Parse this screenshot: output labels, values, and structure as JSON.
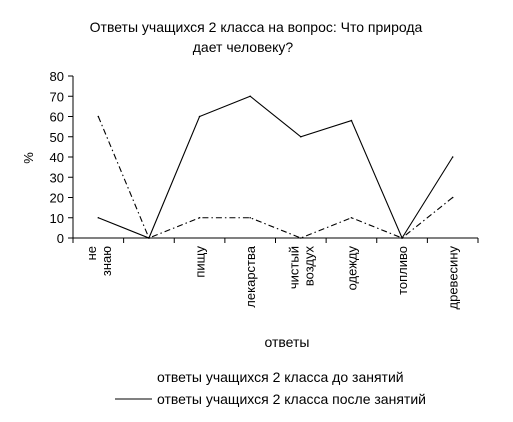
{
  "chart_data": {
    "type": "line",
    "title_line1": "Ответы учащихся 2 класса на вопрос: Что природа",
    "title_line2": "дает человеку?",
    "xlabel": "ответы",
    "ylabel": "%",
    "ylim": [
      0,
      80
    ],
    "yticks": [
      0,
      10,
      20,
      30,
      40,
      50,
      60,
      70,
      80
    ],
    "grid": false,
    "legend_position": "bottom",
    "categories": [
      "не знаю",
      "",
      "пищу",
      "лекарства",
      "чистый воздух",
      "одежду",
      "топливо",
      "древесину"
    ],
    "series": [
      {
        "name": "ответы учащихся 2 класса до занятий",
        "style": "dash-dot",
        "color": "#000000",
        "values": [
          60,
          0,
          10,
          10,
          0,
          10,
          0,
          20
        ]
      },
      {
        "name": "ответы учащихся 2 класса после занятий",
        "style": "solid",
        "color": "#000000",
        "values": [
          10,
          0,
          60,
          70,
          50,
          58,
          0,
          40
        ]
      }
    ]
  }
}
